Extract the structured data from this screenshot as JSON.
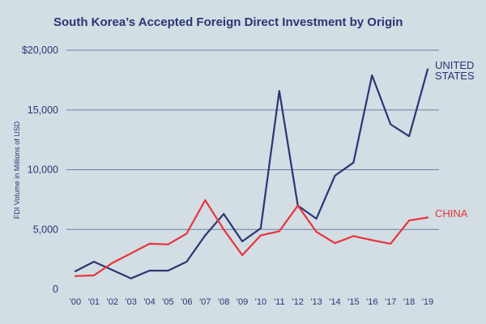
{
  "chart_data": {
    "type": "line",
    "title": "South Korea’s Accepted Foreign Direct Investment by Origin",
    "ylabel": "FDI Volume in Millions of USD",
    "xlabel": "",
    "x": [
      "'00",
      "'01",
      "'02",
      "'03",
      "'04",
      "'05",
      "'06",
      "'07",
      "'08",
      "'09",
      "'10",
      "'11",
      "'12",
      "'13",
      "'14",
      "'15",
      "'16",
      "'17",
      "'18",
      "'19"
    ],
    "ylim": [
      0,
      20000
    ],
    "yticks": [
      0,
      5000,
      10000,
      15000,
      20000
    ],
    "ytick_labels": [
      "0",
      "5,000",
      "10,000",
      "15,000",
      "$20,000"
    ],
    "grid": "horizontal",
    "series": [
      {
        "name": "UNITED STATES",
        "label_lines": [
          "UNITED",
          "STATES"
        ],
        "color": "#2a3673",
        "values": [
          1500,
          2300,
          1600,
          900,
          1550,
          1550,
          2300,
          4500,
          6300,
          4000,
          5100,
          16600,
          7000,
          5900,
          9500,
          10600,
          17900,
          13800,
          12800,
          18400
        ]
      },
      {
        "name": "CHINA",
        "label_lines": [
          "CHINA"
        ],
        "color": "#e8343c",
        "values": [
          1100,
          1150,
          2200,
          3000,
          3800,
          3750,
          4650,
          7450,
          5000,
          2850,
          4500,
          4850,
          7000,
          4800,
          3850,
          4450,
          4100,
          3800,
          5750,
          6000
        ]
      }
    ]
  },
  "colors": {
    "background": "#d2dde4",
    "gridline": "#6d7ea6",
    "text": "#2a3673"
  }
}
